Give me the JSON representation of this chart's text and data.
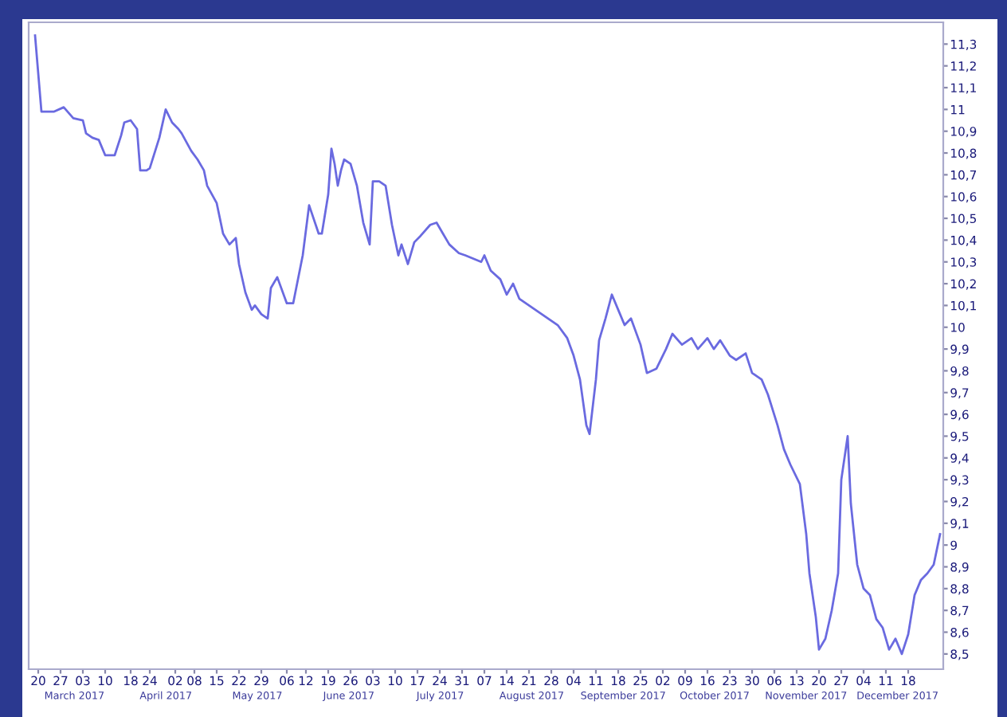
{
  "chart_data": {
    "type": "line",
    "color": "#6a6ae0",
    "grid": false,
    "legend": false,
    "marker": "none",
    "line_style": "solid",
    "x": [
      "2017-03-19",
      "2017-03-21",
      "2017-03-25",
      "2017-03-28",
      "2017-03-31",
      "2017-04-03",
      "2017-04-04",
      "2017-04-06",
      "2017-04-08",
      "2017-04-10",
      "2017-04-13",
      "2017-04-15",
      "2017-04-16",
      "2017-04-18",
      "2017-04-20",
      "2017-04-21",
      "2017-04-23",
      "2017-04-24",
      "2017-04-27",
      "2017-04-29",
      "2017-05-01",
      "2017-05-03",
      "2017-05-04",
      "2017-05-07",
      "2017-05-09",
      "2017-05-11",
      "2017-05-12",
      "2017-05-15",
      "2017-05-17",
      "2017-05-19",
      "2017-05-21",
      "2017-05-22",
      "2017-05-24",
      "2017-05-26",
      "2017-05-27",
      "2017-05-29",
      "2017-05-31",
      "2017-06-01",
      "2017-06-03",
      "2017-06-06",
      "2017-06-08",
      "2017-06-11",
      "2017-06-13",
      "2017-06-16",
      "2017-06-17",
      "2017-06-19",
      "2017-06-20",
      "2017-06-21",
      "2017-06-22",
      "2017-06-23",
      "2017-06-24",
      "2017-06-26",
      "2017-06-28",
      "2017-06-30",
      "2017-07-02",
      "2017-07-03",
      "2017-07-05",
      "2017-07-07",
      "2017-07-09",
      "2017-07-11",
      "2017-07-12",
      "2017-07-14",
      "2017-07-16",
      "2017-07-18",
      "2017-07-21",
      "2017-07-23",
      "2017-07-25",
      "2017-07-27",
      "2017-07-30",
      "2017-08-01",
      "2017-08-06",
      "2017-08-07",
      "2017-08-09",
      "2017-08-12",
      "2017-08-14",
      "2017-08-16",
      "2017-08-18",
      "2017-08-20",
      "2017-08-23",
      "2017-08-25",
      "2017-08-28",
      "2017-08-30",
      "2017-09-02",
      "2017-09-04",
      "2017-09-06",
      "2017-09-08",
      "2017-09-09",
      "2017-09-11",
      "2017-09-12",
      "2017-09-14",
      "2017-09-16",
      "2017-09-18",
      "2017-09-20",
      "2017-09-22",
      "2017-09-25",
      "2017-09-27",
      "2017-09-30",
      "2017-10-03",
      "2017-10-05",
      "2017-10-08",
      "2017-10-11",
      "2017-10-13",
      "2017-10-16",
      "2017-10-18",
      "2017-10-20",
      "2017-10-23",
      "2017-10-25",
      "2017-10-28",
      "2017-10-30",
      "2017-11-02",
      "2017-11-04",
      "2017-11-07",
      "2017-11-09",
      "2017-11-11",
      "2017-11-14",
      "2017-11-16",
      "2017-11-17",
      "2017-11-19",
      "2017-11-20",
      "2017-11-22",
      "2017-11-24",
      "2017-11-26",
      "2017-11-27",
      "2017-11-29",
      "2017-11-30",
      "2017-12-02",
      "2017-12-04",
      "2017-12-06",
      "2017-12-08",
      "2017-12-10",
      "2017-12-12",
      "2017-12-14",
      "2017-12-16",
      "2017-12-18",
      "2017-12-20",
      "2017-12-22",
      "2017-12-24",
      "2017-12-26",
      "2017-12-28"
    ],
    "values": [
      11.34,
      10.99,
      10.99,
      11.01,
      10.96,
      10.95,
      10.89,
      10.87,
      10.86,
      10.79,
      10.79,
      10.88,
      10.94,
      10.95,
      10.91,
      10.72,
      10.72,
      10.73,
      10.87,
      11.0,
      10.94,
      10.91,
      10.89,
      10.81,
      10.77,
      10.72,
      10.65,
      10.57,
      10.43,
      10.38,
      10.41,
      10.29,
      10.16,
      10.08,
      10.1,
      10.06,
      10.04,
      10.18,
      10.23,
      10.11,
      10.11,
      10.33,
      10.56,
      10.43,
      10.43,
      10.61,
      10.82,
      10.75,
      10.65,
      10.72,
      10.77,
      10.75,
      10.65,
      10.48,
      10.38,
      10.67,
      10.67,
      10.65,
      10.47,
      10.33,
      10.38,
      10.29,
      10.39,
      10.42,
      10.47,
      10.48,
      10.43,
      10.38,
      10.34,
      10.33,
      10.3,
      10.33,
      10.26,
      10.22,
      10.15,
      10.2,
      10.13,
      10.11,
      10.08,
      10.06,
      10.03,
      10.01,
      9.95,
      9.87,
      9.76,
      9.55,
      9.51,
      9.76,
      9.94,
      10.04,
      10.15,
      10.08,
      10.01,
      10.04,
      9.92,
      9.79,
      9.81,
      9.9,
      9.97,
      9.92,
      9.95,
      9.9,
      9.95,
      9.9,
      9.94,
      9.87,
      9.85,
      9.88,
      9.79,
      9.76,
      9.69,
      9.55,
      9.44,
      9.37,
      9.28,
      9.05,
      8.87,
      8.67,
      8.52,
      8.57,
      8.7,
      8.87,
      9.3,
      9.5,
      9.19,
      8.91,
      8.8,
      8.77,
      8.66,
      8.62,
      8.52,
      8.57,
      8.5,
      8.59,
      8.77,
      8.84,
      8.87,
      8.91,
      9.05
    ],
    "xlim": [
      "2017-03-17",
      "2017-12-29"
    ],
    "xticks": [
      {
        "value": "2017-03-20",
        "label": "20"
      },
      {
        "value": "2017-03-27",
        "label": "27"
      },
      {
        "value": "2017-04-03",
        "label": "03"
      },
      {
        "value": "2017-04-10",
        "label": "10"
      },
      {
        "value": "2017-04-18",
        "label": "18"
      },
      {
        "value": "2017-04-24",
        "label": "24"
      },
      {
        "value": "2017-05-02",
        "label": "02"
      },
      {
        "value": "2017-05-08",
        "label": "08"
      },
      {
        "value": "2017-05-15",
        "label": "15"
      },
      {
        "value": "2017-05-22",
        "label": "22"
      },
      {
        "value": "2017-05-29",
        "label": "29"
      },
      {
        "value": "2017-06-06",
        "label": "06"
      },
      {
        "value": "2017-06-12",
        "label": "12"
      },
      {
        "value": "2017-06-19",
        "label": "19"
      },
      {
        "value": "2017-06-26",
        "label": "26"
      },
      {
        "value": "2017-07-03",
        "label": "03"
      },
      {
        "value": "2017-07-10",
        "label": "10"
      },
      {
        "value": "2017-07-17",
        "label": "17"
      },
      {
        "value": "2017-07-24",
        "label": "24"
      },
      {
        "value": "2017-07-31",
        "label": "31"
      },
      {
        "value": "2017-08-07",
        "label": "07"
      },
      {
        "value": "2017-08-14",
        "label": "14"
      },
      {
        "value": "2017-08-21",
        "label": "21"
      },
      {
        "value": "2017-08-28",
        "label": "28"
      },
      {
        "value": "2017-09-04",
        "label": "04"
      },
      {
        "value": "2017-09-11",
        "label": "11"
      },
      {
        "value": "2017-09-18",
        "label": "18"
      },
      {
        "value": "2017-09-25",
        "label": "25"
      },
      {
        "value": "2017-10-02",
        "label": "02"
      },
      {
        "value": "2017-10-09",
        "label": "09"
      },
      {
        "value": "2017-10-16",
        "label": "16"
      },
      {
        "value": "2017-10-23",
        "label": "23"
      },
      {
        "value": "2017-10-30",
        "label": "30"
      },
      {
        "value": "2017-11-06",
        "label": "06"
      },
      {
        "value": "2017-11-13",
        "label": "13"
      },
      {
        "value": "2017-11-20",
        "label": "20"
      },
      {
        "value": "2017-11-27",
        "label": "27"
      },
      {
        "value": "2017-12-04",
        "label": "04"
      },
      {
        "value": "2017-12-11",
        "label": "11"
      },
      {
        "value": "2017-12-18",
        "label": "18"
      }
    ],
    "ylim": [
      8.43,
      11.4
    ],
    "yticks": [
      {
        "value": 8.5,
        "label": "8,5"
      },
      {
        "value": 8.6,
        "label": "8,6"
      },
      {
        "value": 8.7,
        "label": "8,7"
      },
      {
        "value": 8.8,
        "label": "8,8"
      },
      {
        "value": 8.9,
        "label": "8,9"
      },
      9,
      {
        "value": 9.1,
        "label": "9,1"
      },
      {
        "value": 9.2,
        "label": "9,2"
      },
      {
        "value": 9.3,
        "label": "9,3"
      },
      {
        "value": 9.4,
        "label": "9,4"
      },
      {
        "value": 9.5,
        "label": "9,5"
      },
      {
        "value": 9.6,
        "label": "9,6"
      },
      {
        "value": 9.7,
        "label": "9,7"
      },
      {
        "value": 9.8,
        "label": "9,8"
      },
      {
        "value": 9.9,
        "label": "9,9"
      },
      10,
      {
        "value": 10.1,
        "label": "10,1"
      },
      {
        "value": 10.2,
        "label": "10,2"
      },
      {
        "value": 10.3,
        "label": "10,3"
      },
      {
        "value": 10.4,
        "label": "10,4"
      },
      {
        "value": 10.5,
        "label": "10,5"
      },
      {
        "value": 10.6,
        "label": "10,6"
      },
      {
        "value": 10.7,
        "label": "10,7"
      },
      {
        "value": 10.8,
        "label": "10,8"
      },
      {
        "value": 10.9,
        "label": "10,9"
      },
      11,
      {
        "value": 11.1,
        "label": "11,1"
      },
      {
        "value": 11.2,
        "label": "11,2"
      },
      {
        "value": 11.3,
        "label": "11,3"
      }
    ],
    "annotations": [
      "March 2017",
      "April 2017",
      "May 2017",
      "June 2017",
      "July 2017",
      "August 2017",
      "September 2017",
      "October 2017",
      "November 2017",
      "December 2017"
    ]
  }
}
